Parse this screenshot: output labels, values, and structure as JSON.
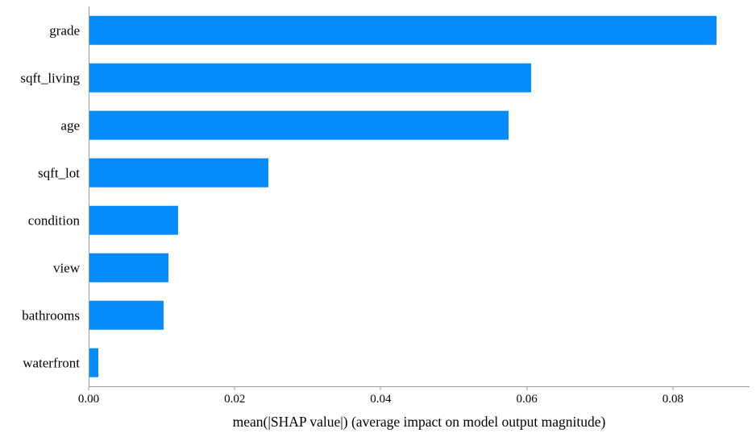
{
  "chart_data": {
    "type": "bar",
    "orientation": "horizontal",
    "title": "",
    "xlabel": "mean(|SHAP value|) (average impact on model output magnitude)",
    "ylabel": "",
    "categories": [
      "grade",
      "sqft_living",
      "age",
      "sqft_lot",
      "condition",
      "view",
      "bathrooms",
      "waterfront"
    ],
    "values": [
      0.086,
      0.0605,
      0.0575,
      0.0245,
      0.0122,
      0.0108,
      0.0102,
      0.0012
    ],
    "xlim": [
      0,
      0.0905
    ],
    "x_ticks": [
      "0.00",
      "0.02",
      "0.04",
      "0.06",
      "0.08"
    ],
    "x_tick_values": [
      0,
      0.02,
      0.04,
      0.06,
      0.08
    ],
    "bar_color": "#068bfb",
    "grid": false,
    "legend": null
  },
  "colors": {
    "background": "#ffffff",
    "axis": "#9a9a9a",
    "text": "#000000",
    "bar": "#068bfb"
  }
}
